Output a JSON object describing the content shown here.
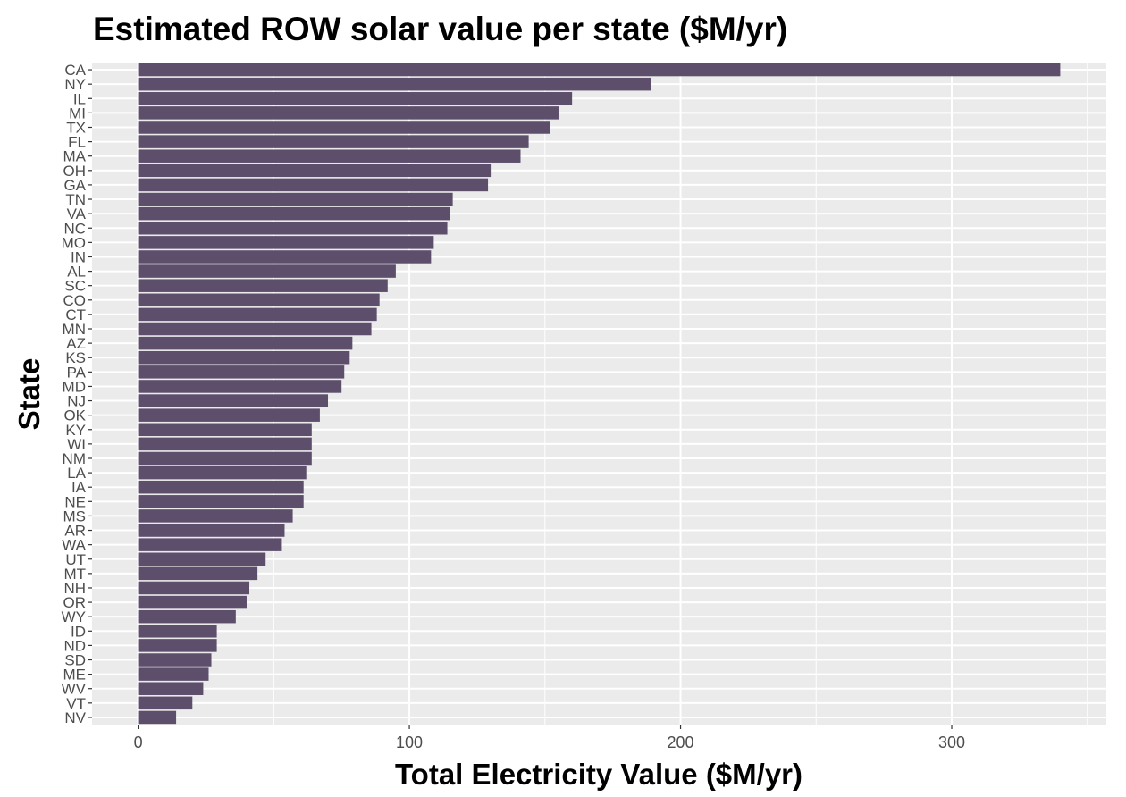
{
  "chart_data": {
    "type": "bar",
    "orientation": "horizontal",
    "title": "Estimated ROW solar value per state ($M/yr)",
    "xlabel": "Total Electricity Value ($M/yr)",
    "ylabel": "State",
    "xlim": [
      -17,
      357
    ],
    "x_ticks": [
      0,
      100,
      200,
      300
    ],
    "bar_color": "#5d4f6c",
    "panel_background": "#ebebeb",
    "grid": true,
    "legend": "none",
    "categories": [
      "CA",
      "NY",
      "IL",
      "MI",
      "TX",
      "FL",
      "MA",
      "OH",
      "GA",
      "TN",
      "VA",
      "NC",
      "MO",
      "IN",
      "AL",
      "SC",
      "CO",
      "CT",
      "MN",
      "AZ",
      "KS",
      "PA",
      "MD",
      "NJ",
      "OK",
      "KY",
      "WI",
      "NM",
      "LA",
      "IA",
      "NE",
      "MS",
      "AR",
      "WA",
      "UT",
      "MT",
      "NH",
      "OR",
      "WY",
      "ID",
      "ND",
      "SD",
      "ME",
      "WV",
      "VT",
      "NV"
    ],
    "values": [
      340,
      189,
      160,
      155,
      152,
      144,
      141,
      130,
      129,
      116,
      115,
      114,
      109,
      108,
      95,
      92,
      89,
      88,
      86,
      79,
      78,
      76,
      75,
      70,
      67,
      64,
      64,
      64,
      62,
      61,
      61,
      57,
      54,
      53,
      47,
      44,
      41,
      40,
      36,
      29,
      29,
      27,
      26,
      24,
      20,
      14
    ]
  }
}
